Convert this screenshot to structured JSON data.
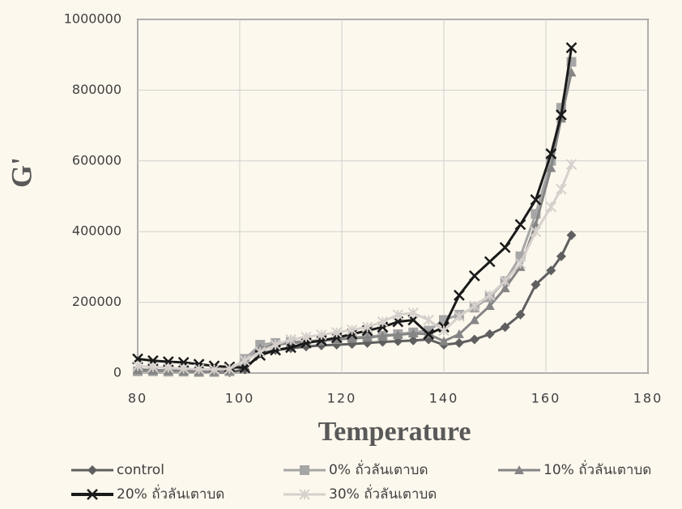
{
  "chart_data": {
    "type": "line",
    "x_label": "Temperature",
    "y_label": "G'",
    "x": [
      80,
      83,
      86,
      89,
      92,
      95,
      98,
      101,
      104,
      107,
      110,
      113,
      116,
      119,
      122,
      125,
      128,
      131,
      134,
      137,
      140,
      143,
      146,
      149,
      152,
      155,
      158,
      161,
      163,
      165
    ],
    "series": [
      {
        "name": "control",
        "color": "#5f5f5f",
        "marker": "diamond",
        "values": [
          10000,
          8000,
          7000,
          6000,
          5000,
          3000,
          2000,
          10000,
          55000,
          65000,
          70000,
          75000,
          78000,
          80000,
          82000,
          85000,
          88000,
          90000,
          92000,
          95000,
          80000,
          85000,
          95000,
          110000,
          130000,
          165000,
          250000,
          290000,
          330000,
          390000
        ]
      },
      {
        "name": "0% ถั่วลันเตาบด",
        "color": "#a6a6a6",
        "marker": "square",
        "values": [
          5000,
          5000,
          4000,
          4000,
          3000,
          3000,
          5000,
          40000,
          80000,
          85000,
          88000,
          90000,
          93000,
          96000,
          100000,
          103000,
          106000,
          110000,
          115000,
          120000,
          150000,
          165000,
          185000,
          215000,
          260000,
          330000,
          450000,
          600000,
          750000,
          880000
        ]
      },
      {
        "name": "10% ถั่วลันเตาบด",
        "color": "#858585",
        "marker": "triangle",
        "values": [
          8000,
          7000,
          6000,
          5000,
          4000,
          4000,
          6000,
          30000,
          70000,
          80000,
          85000,
          88000,
          92000,
          95000,
          98000,
          100000,
          105000,
          108000,
          112000,
          110000,
          90000,
          110000,
          150000,
          190000,
          240000,
          300000,
          420000,
          580000,
          720000,
          850000
        ]
      },
      {
        "name": "20% ถั่วลันเตาบด",
        "color": "#1a1a1a",
        "marker": "x",
        "values": [
          40000,
          35000,
          32000,
          30000,
          25000,
          20000,
          17000,
          15000,
          50000,
          65000,
          72000,
          85000,
          92000,
          100000,
          110000,
          120000,
          130000,
          145000,
          150000,
          110000,
          130000,
          220000,
          275000,
          315000,
          355000,
          420000,
          490000,
          620000,
          730000,
          920000
        ]
      },
      {
        "name": "30% ถั่วลันเตาบด",
        "color": "#d6d0cc",
        "marker": "star",
        "values": [
          20000,
          17000,
          15000,
          13000,
          11000,
          10000,
          12000,
          35000,
          60000,
          80000,
          95000,
          102000,
          108000,
          115000,
          122000,
          130000,
          145000,
          165000,
          170000,
          150000,
          120000,
          160000,
          190000,
          220000,
          260000,
          310000,
          400000,
          470000,
          520000,
          590000
        ]
      }
    ],
    "xlim": [
      80,
      180
    ],
    "xticks": [
      80,
      100,
      120,
      140,
      160,
      180
    ],
    "ylim": [
      0,
      1000000
    ],
    "yticks": [
      0,
      200000,
      400000,
      600000,
      800000,
      1000000
    ],
    "grid": true,
    "legend": "bottom"
  }
}
